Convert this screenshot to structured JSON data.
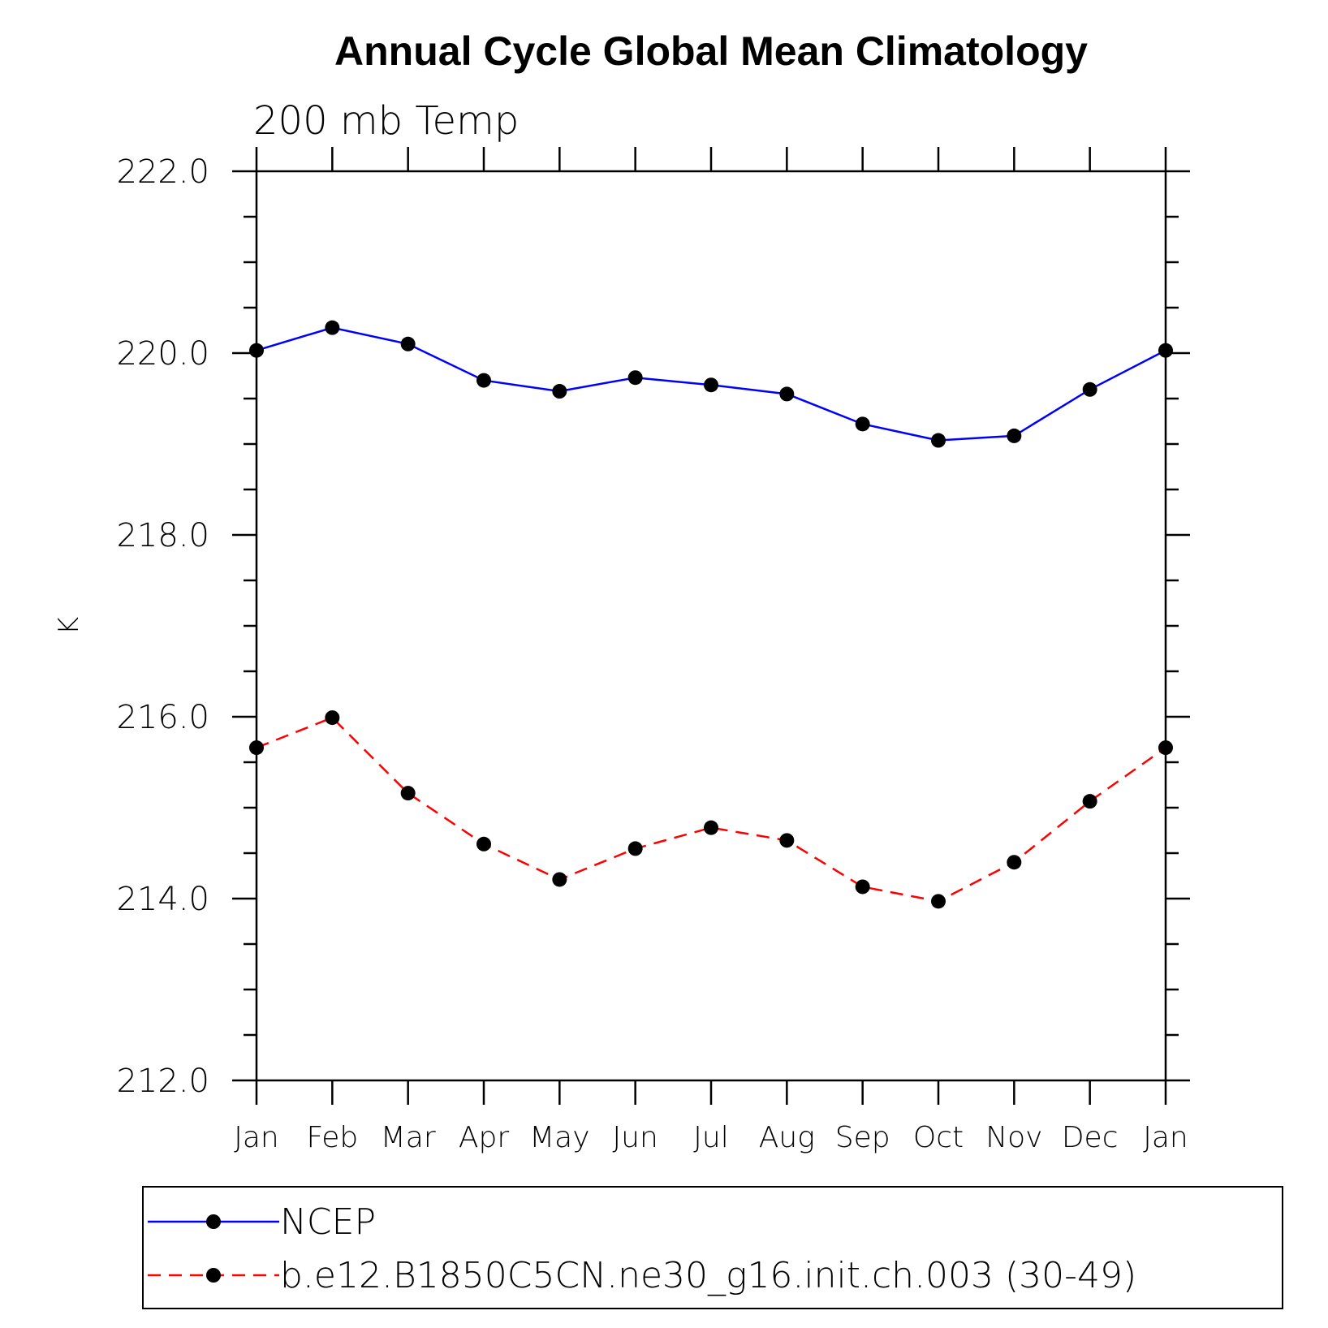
{
  "chart_data": {
    "type": "line",
    "title": "Annual Cycle Global Mean Climatology",
    "subtitle": "200 mb Temp",
    "ylabel": "K",
    "xlabel": "",
    "ylim": [
      212.0,
      222.0
    ],
    "y_ticks": [
      "212.0",
      "214.0",
      "216.0",
      "218.0",
      "220.0",
      "222.0"
    ],
    "categories": [
      "Jan",
      "Feb",
      "Mar",
      "Apr",
      "May",
      "Jun",
      "Jul",
      "Aug",
      "Sep",
      "Oct",
      "Nov",
      "Dec",
      "Jan"
    ],
    "series": [
      {
        "name": "NCEP",
        "color": "#0000ff",
        "dash": "solid",
        "marker": "filled-circle",
        "values": [
          220.03,
          220.28,
          220.1,
          219.7,
          219.58,
          219.73,
          219.65,
          219.55,
          219.22,
          219.04,
          219.09,
          219.6,
          220.03
        ]
      },
      {
        "name": "b.e12.B1850C5CN.ne30_g16.init.ch.003 (30-49)",
        "color": "#ff0000",
        "dash": "dashed",
        "marker": "filled-circle",
        "values": [
          215.66,
          215.99,
          215.16,
          214.6,
          214.21,
          214.55,
          214.78,
          214.64,
          214.13,
          213.97,
          214.4,
          215.07,
          215.66
        ]
      }
    ],
    "grid": false,
    "legend_position": "bottom"
  }
}
